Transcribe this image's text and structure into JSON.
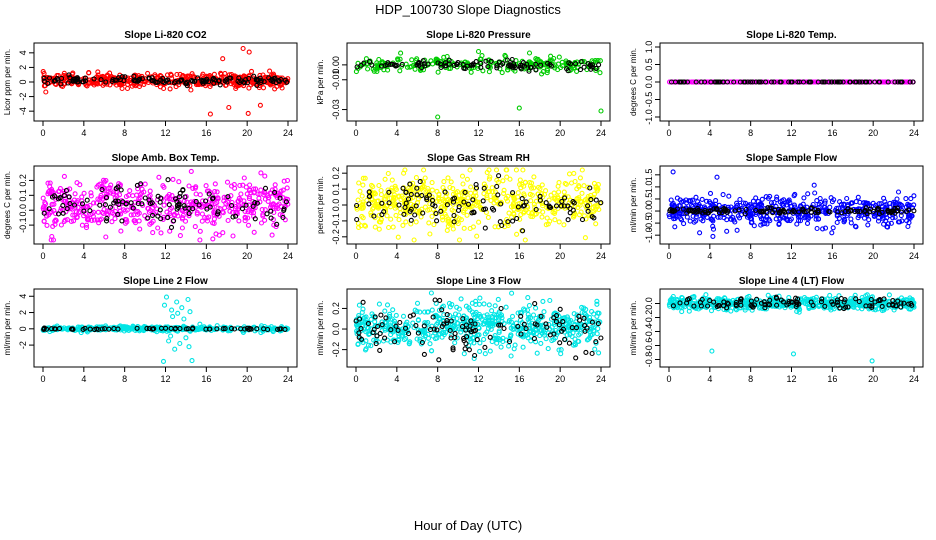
{
  "title": "HDP_100730  Slope Diagnostics",
  "xlabel": "Hour of Day (UTC)",
  "chart_data": [
    {
      "type": "scatter",
      "title": "Slope Li-820 CO2",
      "ylabel": "Licor ppm per min.",
      "xlim": [
        0,
        24
      ],
      "ylim": [
        -4.8,
        4.8
      ],
      "xticks": [
        "0",
        "4",
        "8",
        "12",
        "16",
        "20",
        "24"
      ],
      "yticks": [
        {
          "v": -4,
          "label": "-4"
        },
        {
          "v": -2,
          "label": "-2"
        },
        {
          "v": 0,
          "label": "0"
        },
        {
          "v": 2,
          "label": "2"
        },
        {
          "v": 4,
          "label": "4"
        }
      ],
      "series": [
        {
          "color": "#ff0000",
          "n": 480,
          "base": 0.2,
          "noise": 0.45,
          "outliers": [
            [
              19.6,
              4.6
            ],
            [
              20.2,
              4.1
            ],
            [
              20.1,
              -4.3
            ],
            [
              16.4,
              -4.4
            ],
            [
              18.2,
              -3.5
            ],
            [
              17.6,
              3.2
            ],
            [
              21.3,
              -3.2
            ]
          ]
        },
        {
          "color": "#000000",
          "n": 140,
          "base": 0.2,
          "noise": 0.25
        }
      ]
    },
    {
      "type": "scatter",
      "title": "Slope Li-820 Pressure",
      "ylabel": "kPa per min.",
      "xlim": [
        0,
        24
      ],
      "ylim": [
        -0.035,
        0.012
      ],
      "xticks": [
        "0",
        "4",
        "8",
        "12",
        "16",
        "20",
        "24"
      ],
      "yticks": [
        {
          "v": -0.03,
          "label": "-0.03"
        },
        {
          "v": -0.01,
          "label": "-0.01"
        },
        {
          "v": 0.0,
          "label": "0.00"
        }
      ],
      "series": [
        {
          "color": "#00cc00",
          "n": 240,
          "base": 0.0,
          "noise": 0.0025,
          "outliers": [
            [
              8.0,
              -0.035
            ],
            [
              16.0,
              -0.029
            ],
            [
              24.0,
              -0.031
            ],
            [
              12.0,
              0.009
            ],
            [
              17.0,
              0.008
            ]
          ]
        },
        {
          "color": "#000000",
          "n": 100,
          "base": 0.0,
          "noise": 0.0015
        }
      ]
    },
    {
      "type": "scatter",
      "title": "Slope Li-820 Temp.",
      "ylabel": "degrees C per min.",
      "xlim": [
        0,
        24
      ],
      "ylim": [
        -1,
        1
      ],
      "xticks": [
        "0",
        "4",
        "8",
        "12",
        "16",
        "20",
        "24"
      ],
      "yticks": [
        {
          "v": -1,
          "label": "-1.0"
        },
        {
          "v": -0.5,
          "label": "-0.5"
        },
        {
          "v": 0,
          "label": "0.0"
        },
        {
          "v": 0.5,
          "label": "0.5"
        },
        {
          "v": 1,
          "label": "1.0"
        }
      ],
      "series": [
        {
          "color": "#ff00ff",
          "n": 260,
          "base": 0.0,
          "noise": 0.0
        },
        {
          "color": "#000000",
          "n": 90,
          "base": 0.0,
          "noise": 0.0
        }
      ]
    },
    {
      "type": "scatter",
      "title": "Slope Amb. Box Temp.",
      "ylabel": "degrees C per min.",
      "xlim": [
        0,
        24
      ],
      "ylim": [
        -0.2,
        0.27
      ],
      "xticks": [
        "0",
        "4",
        "8",
        "12",
        "16",
        "20",
        "24"
      ],
      "yticks": [
        {
          "v": -0.1,
          "label": "-0.1"
        },
        {
          "v": 0,
          "label": "0.0"
        },
        {
          "v": 0.1,
          "label": "0.1"
        },
        {
          "v": 0.2,
          "label": "0.2"
        }
      ],
      "series": [
        {
          "color": "#ff00ff",
          "n": 520,
          "base": 0.03,
          "noise": 0.085
        },
        {
          "color": "#000000",
          "n": 110,
          "base": 0.03,
          "noise": 0.07
        }
      ]
    },
    {
      "type": "scatter",
      "title": "Slope Gas Stream RH",
      "ylabel": "percent per min.",
      "xlim": [
        0,
        24
      ],
      "ylim": [
        -0.22,
        0.22
      ],
      "xticks": [
        "0",
        "4",
        "8",
        "12",
        "16",
        "20",
        "24"
      ],
      "yticks": [
        {
          "v": -0.2,
          "label": "-0.2"
        },
        {
          "v": -0.1,
          "label": "-0.1"
        },
        {
          "v": 0,
          "label": "0.0"
        },
        {
          "v": 0.1,
          "label": "0.1"
        },
        {
          "v": 0.2,
          "label": "0.2"
        }
      ],
      "series": [
        {
          "color": "#ffff00",
          "n": 560,
          "base": 0.02,
          "noise": 0.085
        },
        {
          "color": "#000000",
          "n": 110,
          "base": 0.0,
          "noise": 0.07
        }
      ]
    },
    {
      "type": "scatter",
      "title": "Slope Sample Flow",
      "ylabel": "ml/min per min.",
      "xlim": [
        0,
        24
      ],
      "ylim": [
        -1.2,
        1.7
      ],
      "xticks": [
        "0",
        "4",
        "8",
        "12",
        "16",
        "20",
        "24"
      ],
      "yticks": [
        {
          "v": -1,
          "label": "-1.0"
        },
        {
          "v": -0.5,
          "label": "-0.5"
        },
        {
          "v": 0,
          "label": "0.0"
        },
        {
          "v": 0.5,
          "label": "0.5"
        },
        {
          "v": 1,
          "label": "1.0"
        },
        {
          "v": 1.5,
          "label": "1.5"
        }
      ],
      "series": [
        {
          "color": "#0000ff",
          "n": 520,
          "base": 0.0,
          "noise": 0.3,
          "outliers": [
            [
              0.4,
              1.62
            ],
            [
              4.7,
              1.4
            ],
            [
              4.3,
              -1.05
            ],
            [
              3.0,
              -0.9
            ]
          ]
        },
        {
          "color": "#000000",
          "n": 120,
          "base": 0.0,
          "noise": 0.06
        }
      ]
    },
    {
      "type": "scatter",
      "title": "Slope Line 2 Flow",
      "ylabel": "ml/min per min.",
      "xlim": [
        0,
        24
      ],
      "ylim": [
        -4.2,
        4.4
      ],
      "xticks": [
        "0",
        "4",
        "8",
        "12",
        "16",
        "20",
        "24"
      ],
      "yticks": [
        {
          "v": -2,
          "label": "-2"
        },
        {
          "v": 0,
          "label": "0"
        },
        {
          "v": 2,
          "label": "2"
        },
        {
          "v": 4,
          "label": "4"
        }
      ],
      "series": [
        {
          "color": "#00e5e5",
          "n": 380,
          "base": 0.0,
          "noise": 0.15,
          "outliers": [
            [
              11.8,
              -4.0
            ],
            [
              14.6,
              -3.9
            ],
            [
              12.1,
              3.9
            ],
            [
              14.2,
              3.6
            ],
            [
              13.1,
              3.3
            ],
            [
              12.6,
              2.3
            ],
            [
              13.6,
              2.6
            ],
            [
              12.9,
              -2.5
            ],
            [
              11.9,
              2.9
            ],
            [
              14.4,
              2.1
            ],
            [
              12.3,
              -1.5
            ],
            [
              13.4,
              -1.8
            ],
            [
              14.0,
              -1.1
            ],
            [
              12.7,
              1.5
            ],
            [
              13.8,
              1.2
            ],
            [
              12.5,
              -0.9
            ],
            [
              14.3,
              -2.2
            ],
            [
              13.2,
              1.9
            ]
          ]
        },
        {
          "color": "#000000",
          "n": 60,
          "base": 0.0,
          "noise": 0.05
        }
      ]
    },
    {
      "type": "scatter",
      "title": "Slope Line 3 Flow",
      "ylabel": "ml/min per min.",
      "xlim": [
        0,
        24
      ],
      "ylim": [
        -0.33,
        0.35
      ],
      "xticks": [
        "0",
        "4",
        "8",
        "12",
        "16",
        "20",
        "24"
      ],
      "yticks": [
        {
          "v": -0.2,
          "label": "-0.2"
        },
        {
          "v": 0,
          "label": "0.0"
        },
        {
          "v": 0.2,
          "label": "0.2"
        }
      ],
      "series": [
        {
          "color": "#00e5e5",
          "n": 600,
          "base": 0.02,
          "noise": 0.11
        },
        {
          "color": "#000000",
          "n": 120,
          "base": 0.0,
          "noise": 0.11
        }
      ]
    },
    {
      "type": "scatter",
      "title": "Slope Line 4 (LT) Flow",
      "ylabel": "ml/min per min.",
      "xlim": [
        0,
        24
      ],
      "ylim": [
        -0.85,
        0.15
      ],
      "xticks": [
        "0",
        "4",
        "8",
        "12",
        "16",
        "20",
        "24"
      ],
      "yticks": [
        {
          "v": -0.8,
          "label": "-0.8"
        },
        {
          "v": -0.6,
          "label": "-0.6"
        },
        {
          "v": -0.4,
          "label": "-0.4"
        },
        {
          "v": -0.2,
          "label": "-0.2"
        },
        {
          "v": 0,
          "label": "0.0"
        }
      ],
      "series": [
        {
          "color": "#00e5e5",
          "n": 560,
          "base": 0.0,
          "noise": 0.045,
          "outliers": [
            [
              4.2,
              -0.68
            ],
            [
              12.2,
              -0.72
            ],
            [
              19.9,
              -0.82
            ]
          ]
        },
        {
          "color": "#000000",
          "n": 100,
          "base": 0.0,
          "noise": 0.04
        }
      ]
    }
  ]
}
